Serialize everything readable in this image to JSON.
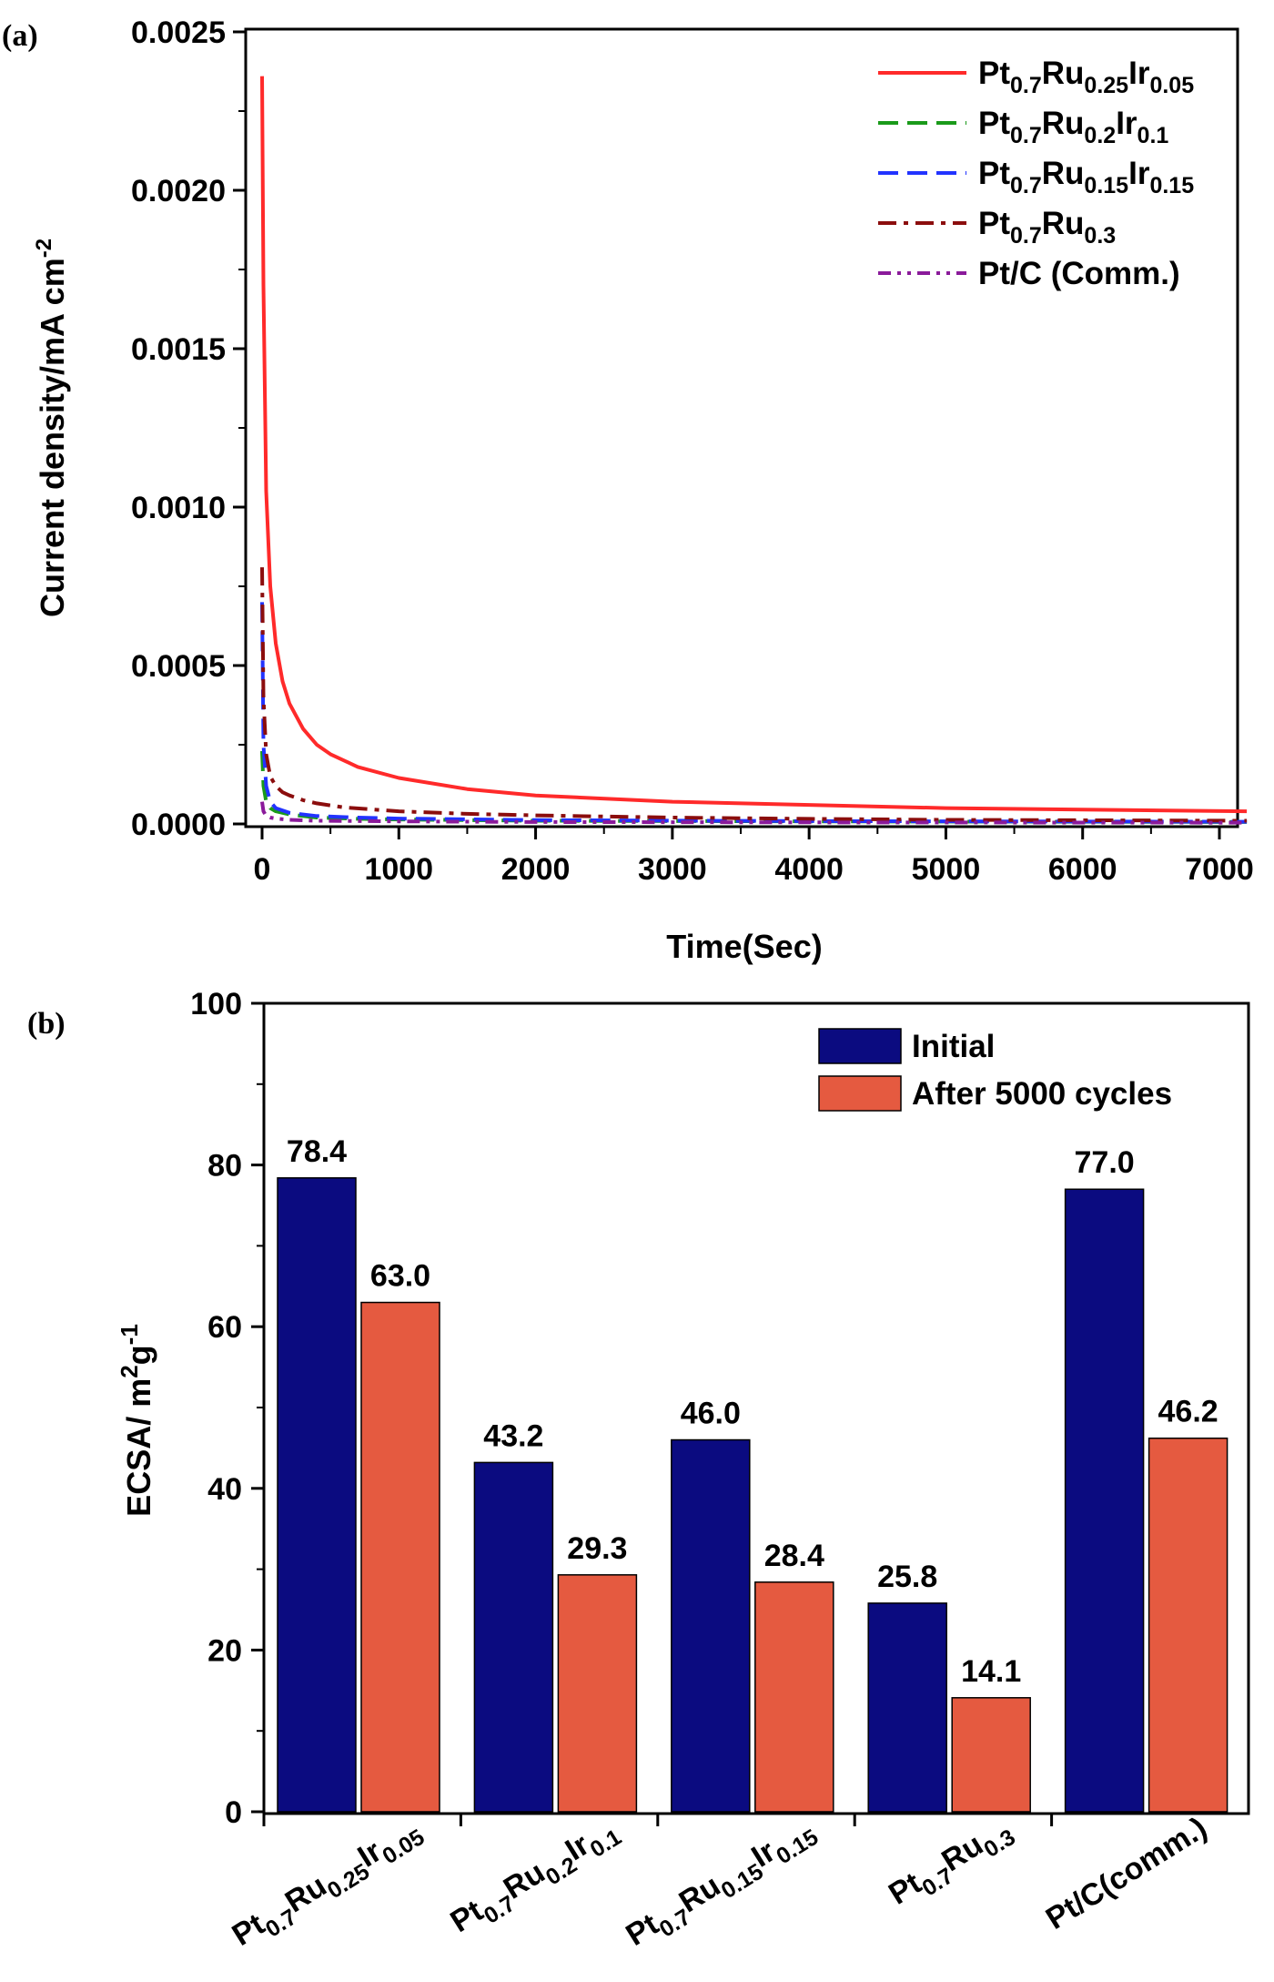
{
  "chart_data": [
    {
      "panel_label": "(a)",
      "type": "line",
      "xlabel": "Time(Sec)",
      "ylabel": "Current density/mA cm",
      "ylabel_sup": "-2",
      "xlim": [
        0,
        7200
      ],
      "ylim": [
        0,
        0.0025
      ],
      "x_ticks": [
        "0",
        "1000",
        "2000",
        "3000",
        "4000",
        "5000",
        "6000",
        "7000"
      ],
      "y_ticks": [
        "0.0000",
        "0.0005",
        "0.0010",
        "0.0015",
        "0.0020",
        "0.0025"
      ],
      "legend_position": "top-right",
      "series": [
        {
          "name": "Pt0.7Ru0.25Ir0.05",
          "name_parts": [
            [
              "Pt",
              ""
            ],
            [
              "0.7",
              "sub"
            ],
            [
              "Ru",
              ""
            ],
            [
              "0.25",
              "sub"
            ],
            [
              "Ir",
              ""
            ],
            [
              "0.05",
              "sub"
            ]
          ],
          "color": "#ff2a2a",
          "style": "solid",
          "x": [
            0,
            10,
            30,
            60,
            100,
            150,
            200,
            300,
            400,
            500,
            700,
            1000,
            1500,
            2000,
            3000,
            4000,
            5000,
            6000,
            7200
          ],
          "y": [
            0.00236,
            0.0017,
            0.00105,
            0.00075,
            0.00057,
            0.00045,
            0.00038,
            0.0003,
            0.00025,
            0.00022,
            0.00018,
            0.000145,
            0.00011,
            9e-05,
            7e-05,
            6e-05,
            5e-05,
            4.5e-05,
            4e-05
          ]
        },
        {
          "name": "Pt0.7Ru0.2Ir0.1",
          "name_parts": [
            [
              "Pt",
              ""
            ],
            [
              "0.7",
              "sub"
            ],
            [
              "Ru",
              ""
            ],
            [
              "0.2",
              "sub"
            ],
            [
              "Ir",
              ""
            ],
            [
              "0.1",
              "sub"
            ]
          ],
          "color": "#1a9a1a",
          "style": "dash",
          "x": [
            0,
            10,
            30,
            60,
            100,
            200,
            400,
            700,
            1000,
            2000,
            4000,
            7200
          ],
          "y": [
            0.00023,
            0.00012,
            7e-05,
            5e-05,
            4e-05,
            3e-05,
            2e-05,
            1.6e-05,
            1.4e-05,
            1e-05,
            8e-06,
            6e-06
          ]
        },
        {
          "name": "Pt0.7Ru0.15Ir0.15",
          "name_parts": [
            [
              "Pt",
              ""
            ],
            [
              "0.7",
              "sub"
            ],
            [
              "Ru",
              ""
            ],
            [
              "0.15",
              "sub"
            ],
            [
              "Ir",
              ""
            ],
            [
              "0.15",
              "sub"
            ]
          ],
          "color": "#2233ff",
          "style": "dash",
          "x": [
            0,
            10,
            30,
            60,
            100,
            200,
            400,
            700,
            1000,
            2000,
            4000,
            7200
          ],
          "y": [
            0.0007,
            0.00025,
            0.00012,
            7e-05,
            5e-05,
            3.5e-05,
            2.5e-05,
            2e-05,
            1.7e-05,
            1.2e-05,
            9e-06,
            7e-06
          ]
        },
        {
          "name": "Pt0.7Ru0.3",
          "name_parts": [
            [
              "Pt",
              ""
            ],
            [
              "0.7",
              "sub"
            ],
            [
              "Ru",
              ""
            ],
            [
              "0.3",
              "sub"
            ]
          ],
          "color": "#8b0d0d",
          "style": "dashdot",
          "x": [
            0,
            10,
            30,
            60,
            100,
            150,
            200,
            300,
            400,
            600,
            1000,
            1500,
            2000,
            3000,
            4000,
            5000,
            7200
          ],
          "y": [
            0.00081,
            0.0004,
            0.00022,
            0.00015,
            0.00012,
            0.0001,
            9e-05,
            7.5e-05,
            6.5e-05,
            5.2e-05,
            4e-05,
            3.2e-05,
            2.7e-05,
            2e-05,
            1.6e-05,
            1.3e-05,
            1e-05
          ]
        },
        {
          "name": "Pt/C (Comm.)",
          "name_parts": [
            [
              "Pt/C (Comm.)",
              ""
            ]
          ],
          "color": "#8a1a9a",
          "style": "dashdotdot",
          "x": [
            0,
            10,
            30,
            60,
            100,
            200,
            400,
            1000,
            2000,
            4000,
            7200
          ],
          "y": [
            7e-05,
            4e-05,
            2.5e-05,
            2e-05,
            1.7e-05,
            1.3e-05,
            1e-05,
            8e-06,
            6e-06,
            5e-06,
            4e-06
          ]
        }
      ]
    },
    {
      "panel_label": "(b)",
      "type": "bar",
      "ylabel_parts": [
        [
          "ECSA/ m",
          ""
        ],
        [
          "2",
          "sup"
        ],
        [
          "g",
          ""
        ],
        [
          "-1",
          "sup"
        ]
      ],
      "ylim": [
        0,
        100
      ],
      "y_ticks": [
        "0",
        "20",
        "40",
        "60",
        "80",
        "100"
      ],
      "legend_position": "top-right",
      "categories": [
        "Pt0.7Ru0.25Ir0.05",
        "Pt0.7Ru0.2Ir0.1",
        "Pt0.7Ru0.15Ir0.15",
        "Pt0.7Ru0.3",
        "Pt/C(comm.)"
      ],
      "category_parts": [
        [
          [
            "Pt",
            ""
          ],
          [
            "0.7",
            "sub"
          ],
          [
            "Ru",
            ""
          ],
          [
            "0.25",
            "sub"
          ],
          [
            "Ir",
            ""
          ],
          [
            "0.05",
            "sub"
          ]
        ],
        [
          [
            "Pt",
            ""
          ],
          [
            "0.7",
            "sub"
          ],
          [
            "Ru",
            ""
          ],
          [
            "0.2",
            "sub"
          ],
          [
            "Ir",
            ""
          ],
          [
            "0.1",
            "sub"
          ]
        ],
        [
          [
            "Pt",
            ""
          ],
          [
            "0.7",
            "sub"
          ],
          [
            "Ru",
            ""
          ],
          [
            "0.15",
            "sub"
          ],
          [
            "Ir",
            ""
          ],
          [
            "0.15",
            "sub"
          ]
        ],
        [
          [
            "Pt",
            ""
          ],
          [
            "0.7",
            "sub"
          ],
          [
            "Ru",
            ""
          ],
          [
            "0.3",
            "sub"
          ]
        ],
        [
          [
            "Pt/C(comm.)",
            ""
          ]
        ]
      ],
      "series": [
        {
          "name": "Initial",
          "color": "#0b0b80",
          "values": [
            78.4,
            43.2,
            46.0,
            25.8,
            77.0
          ],
          "labels": [
            "78.4",
            "43.2",
            "46.0",
            "25.8",
            "77.0"
          ]
        },
        {
          "name": "After 5000 cycles",
          "color": "#e55a40",
          "values": [
            63.0,
            29.3,
            28.4,
            14.1,
            46.2
          ],
          "labels": [
            "63.0",
            "29.3",
            "28.4",
            "14.1",
            "46.2"
          ]
        }
      ]
    }
  ]
}
